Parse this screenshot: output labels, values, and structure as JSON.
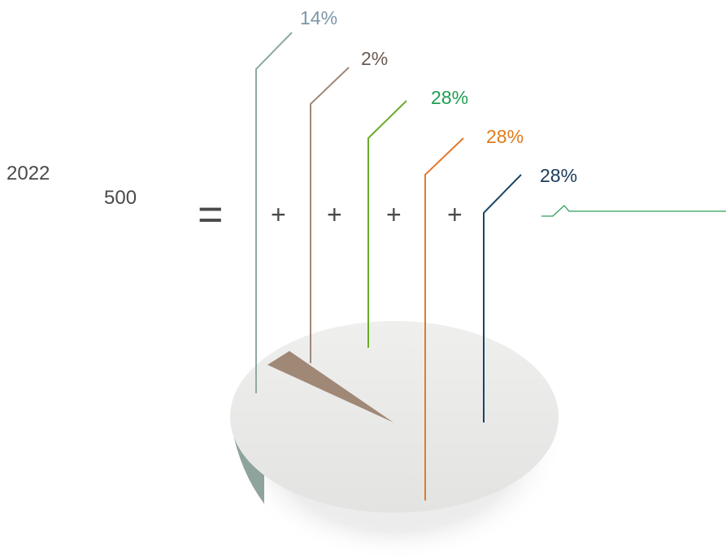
{
  "header": {
    "year": "2022",
    "total": "500"
  },
  "operators": {
    "equals": "=",
    "plus": "+"
  },
  "chart_data": {
    "type": "pie",
    "title": "",
    "categories": [
      "",
      "",
      "",
      "",
      ""
    ],
    "series": [
      {
        "value": 14,
        "label": "14%",
        "color": "#8fa9a3"
      },
      {
        "value": 2,
        "label": "2%",
        "color": "#a08877"
      },
      {
        "value": 28,
        "label": "28%",
        "color": "#6aaa2a"
      },
      {
        "value": 28,
        "label": "28%",
        "color": "#e27a2c"
      },
      {
        "value": 28,
        "label": "28%",
        "color": "#1a4565"
      }
    ],
    "label_colors": [
      "#7b96a8",
      "#6b5a50",
      "#1f9e50",
      "#e07a1c",
      "#1a3a5a"
    ],
    "extra_line_color": "#2f9e5c",
    "pie_face_color": "#e9e9e8",
    "pie_side_color": "#8fa39d"
  }
}
